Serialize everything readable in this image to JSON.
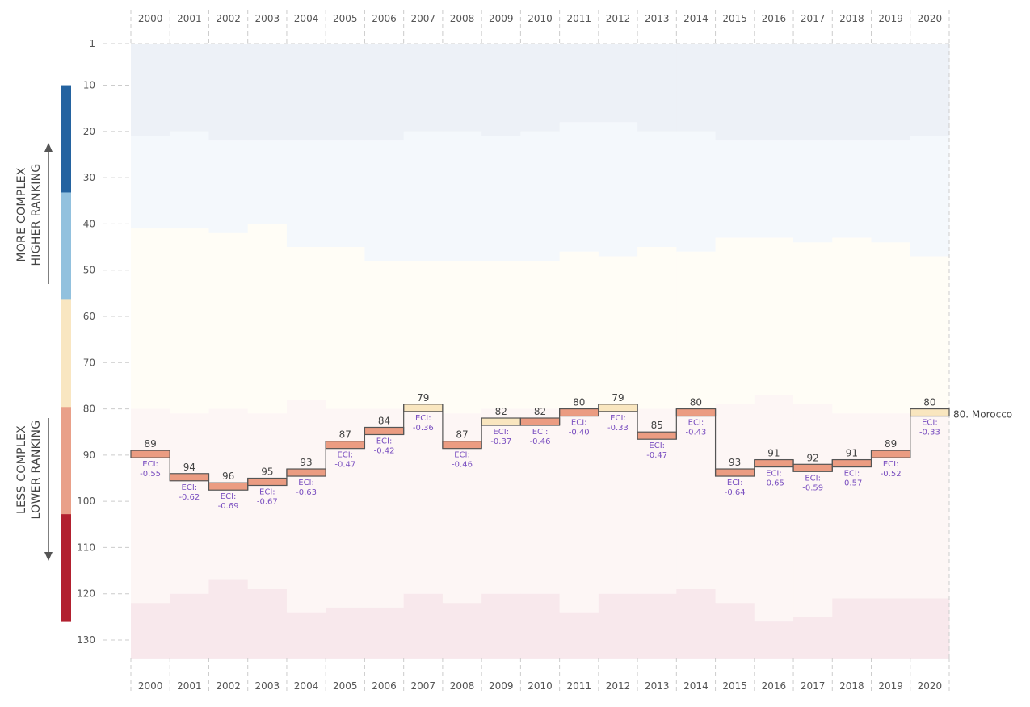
{
  "chart_data": {
    "type": "line",
    "title": "",
    "xlabel": "",
    "ylabel": "",
    "x": [
      "2000",
      "2001",
      "2002",
      "2003",
      "2004",
      "2005",
      "2006",
      "2007",
      "2008",
      "2009",
      "2010",
      "2011",
      "2012",
      "2013",
      "2014",
      "2015",
      "2016",
      "2017",
      "2018",
      "2019",
      "2020"
    ],
    "series": [
      {
        "name": "Morocco",
        "ranks": [
          89,
          94,
          96,
          95,
          93,
          87,
          84,
          79,
          87,
          82,
          82,
          80,
          79,
          85,
          80,
          93,
          91,
          92,
          91,
          89,
          80
        ],
        "eci": [
          "-0.55",
          "-0.62",
          "-0.69",
          "-0.67",
          "-0.63",
          "-0.47",
          "-0.42",
          "-0.36",
          "-0.46",
          "-0.37",
          "-0.46",
          "-0.40",
          "-0.33",
          "-0.47",
          "-0.43",
          "-0.64",
          "-0.65",
          "-0.59",
          "-0.57",
          "-0.52",
          "-0.33"
        ],
        "colors": [
          "#eb9c82",
          "#eb9c82",
          "#eb9c82",
          "#eb9c82",
          "#eb9c82",
          "#eb9c82",
          "#eb9c82",
          "#f9e6bf",
          "#eb9c82",
          "#f9e6bf",
          "#eb9c82",
          "#eb9c82",
          "#f9e6bf",
          "#eb9c82",
          "#eb9c82",
          "#eb9c82",
          "#eb9c82",
          "#eb9c82",
          "#eb9c82",
          "#eb9c82",
          "#f9e6bf"
        ]
      }
    ],
    "eci_prefix": "ECI:",
    "end_label": "80. Morocco",
    "y_ticks": [
      "1",
      "10",
      "20",
      "30",
      "40",
      "50",
      "60",
      "70",
      "80",
      "90",
      "100",
      "110",
      "120",
      "130"
    ],
    "y_tick_values": [
      1,
      10,
      20,
      30,
      40,
      50,
      60,
      70,
      80,
      90,
      100,
      110,
      120,
      130
    ],
    "ylim": [
      1,
      134
    ],
    "y_reversed": true,
    "grid": true,
    "band_colors": [
      "#edf1f7",
      "#f4f8fc",
      "#fffdf6",
      "#fdf6f5",
      "#f8e8ec"
    ],
    "band_boundaries": [
      [
        21,
        20,
        22,
        22,
        22,
        22,
        22,
        20,
        20,
        21,
        20,
        18,
        18,
        20,
        20,
        22,
        22,
        22,
        22,
        22,
        21
      ],
      [
        41,
        41,
        42,
        40,
        45,
        45,
        48,
        48,
        48,
        48,
        48,
        46,
        47,
        45,
        46,
        43,
        43,
        44,
        43,
        44,
        47
      ],
      [
        80,
        81,
        80,
        81,
        78,
        80,
        80,
        80,
        81,
        80,
        80,
        80,
        80,
        80,
        80,
        79,
        77,
        79,
        81,
        81,
        80
      ],
      [
        122,
        120,
        117,
        119,
        124,
        123,
        123,
        120,
        122,
        120,
        120,
        124,
        120,
        120,
        119,
        122,
        126,
        125,
        121,
        121,
        121
      ]
    ],
    "band_max": 134,
    "legend": {
      "up_label": [
        "MORE COMPLEX",
        "HIGHER RANKING"
      ],
      "down_label": [
        "LESS COMPLEX",
        "LOWER RANKING"
      ],
      "scale_colors": [
        "#2463a0",
        "#92c1de",
        "#f9e6c1",
        "#e9a089",
        "#b2202f"
      ],
      "scale_range": [
        10,
        126
      ]
    }
  }
}
